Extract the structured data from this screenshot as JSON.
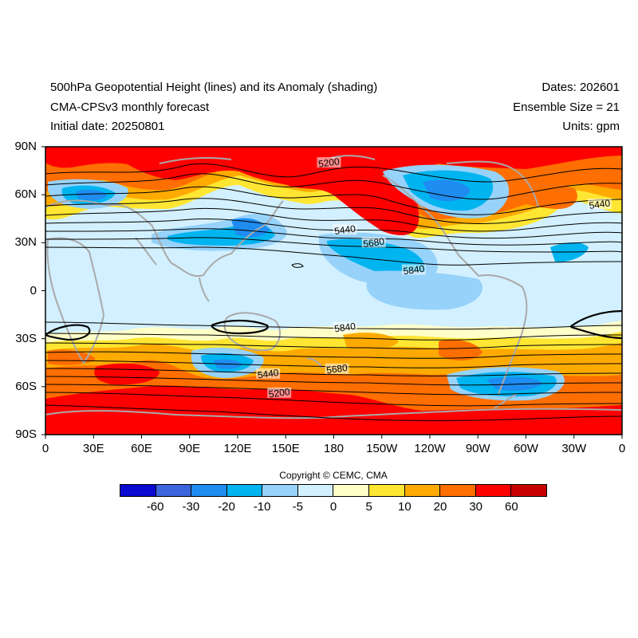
{
  "header": {
    "title": "500hPa Geopotential Height (lines) and its Anomaly (shading)",
    "model": "CMA-CPSv3 monthly forecast",
    "initial_date": "Initial date: 20250801",
    "dates": "Dates: 202601",
    "ensemble": "Ensemble Size = 21",
    "units": "Units: gpm"
  },
  "map": {
    "lat_labels": [
      "90N",
      "60N",
      "30N",
      "0",
      "30S",
      "60S",
      "90S"
    ],
    "lon_labels": [
      "0",
      "30E",
      "60E",
      "90E",
      "120E",
      "150E",
      "180",
      "150W",
      "120W",
      "90W",
      "60W",
      "30W",
      "0"
    ],
    "contour_labels": [
      {
        "text": "5200",
        "lon": 177,
        "lat": 80
      },
      {
        "text": "5440",
        "lon": 187,
        "lat": 38
      },
      {
        "text": "5680",
        "lon": 205,
        "lat": 30
      },
      {
        "text": "5840",
        "lon": 230,
        "lat": 13
      },
      {
        "text": "5440",
        "lon": 346,
        "lat": 54
      },
      {
        "text": "5840",
        "lon": 187,
        "lat": -23
      },
      {
        "text": "5680",
        "lon": 182,
        "lat": -49
      },
      {
        "text": "5440",
        "lon": 139,
        "lat": -52
      },
      {
        "text": "5200",
        "lon": 146,
        "lat": -64
      }
    ]
  },
  "copyright": "Copyright © CEMC, CMA",
  "colorbar": {
    "colors": [
      "#0a0ad0",
      "#3c64dc",
      "#1e8cf0",
      "#00b4f0",
      "#96d2fa",
      "#d2f0ff",
      "#ffffc8",
      "#ffe632",
      "#ffaa00",
      "#ff6e00",
      "#ff0000",
      "#c80000"
    ],
    "labels": [
      "-60",
      "-30",
      "-20",
      "-10",
      "-5",
      "0",
      "5",
      "10",
      "20",
      "30",
      "60"
    ]
  }
}
